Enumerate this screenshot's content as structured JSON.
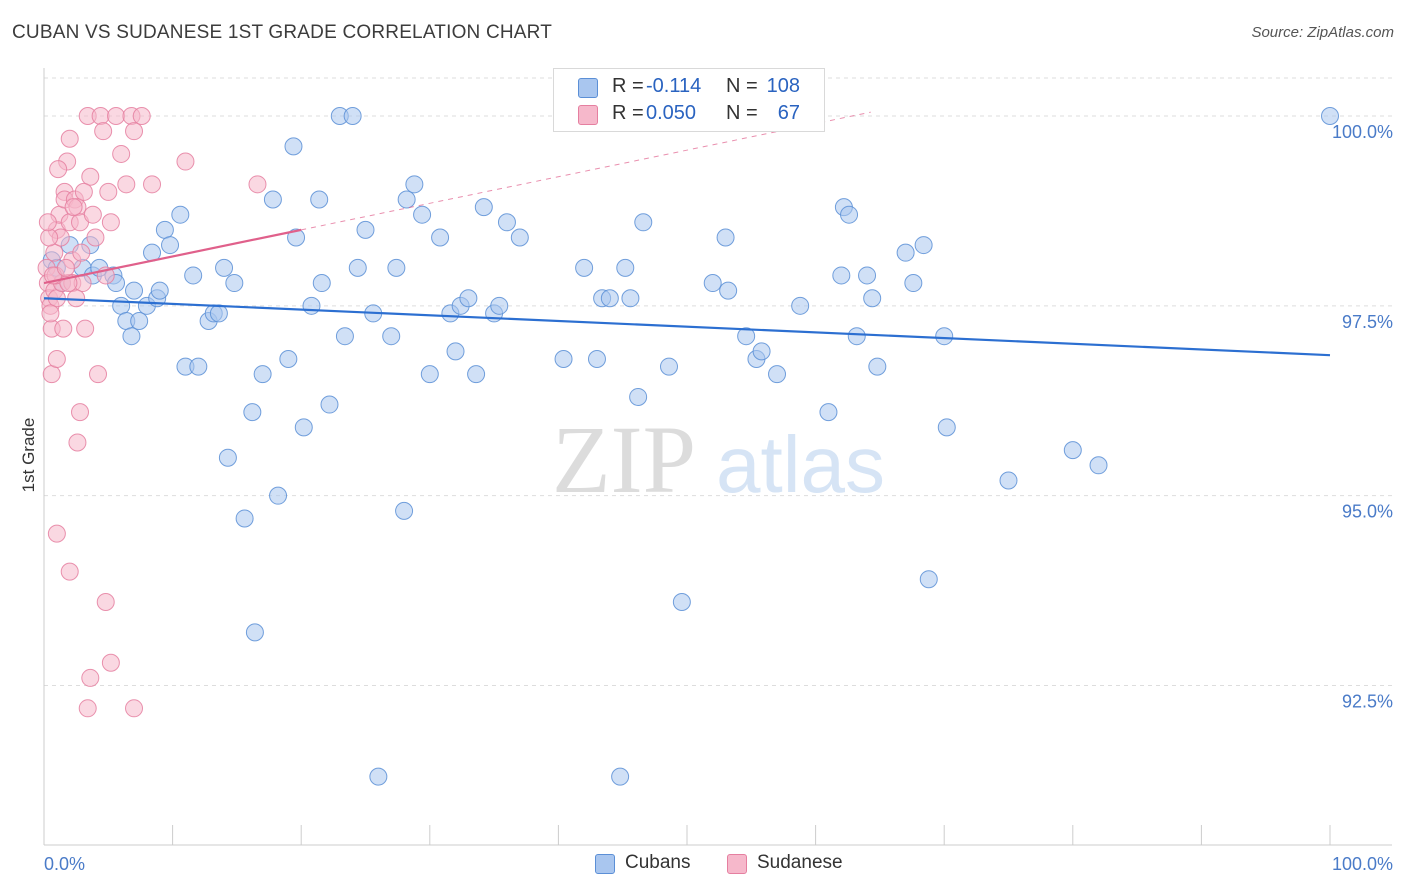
{
  "title": "CUBAN VS SUDANESE 1ST GRADE CORRELATION CHART",
  "source": "Source: ZipAtlas.com",
  "watermark": {
    "zip": "ZIP",
    "atlas": "atlas"
  },
  "colors": {
    "cubans_fill": "#a9c6ef",
    "cubans_stroke": "#5b8fd6",
    "cubans_line": "#2c6fd1",
    "sudanese_fill": "#f6b8cb",
    "sudanese_stroke": "#e57fa0",
    "sudanese_line": "#e0608b",
    "tick_label": "#4a7bc8",
    "grid": "#dddddd"
  },
  "legend": {
    "rows": [
      {
        "r_label": "R =",
        "r_value": "-0.114",
        "n_label": "N =",
        "n_value": "108"
      },
      {
        "r_label": "R =",
        "r_value": "0.050",
        "n_label": "N =",
        "n_value": "67"
      }
    ]
  },
  "bottom_legend": [
    "Cubans",
    "Sudanese"
  ],
  "chart_data": {
    "type": "scatter",
    "title": "CUBAN VS SUDANESE 1ST GRADE CORRELATION CHART",
    "xlabel": "",
    "ylabel": "1st Grade",
    "xlim": [
      0,
      100
    ],
    "ylim": [
      90.4,
      100.5
    ],
    "x_tick_labels": [
      "0.0%",
      "100.0%"
    ],
    "y_ticks": [
      92.5,
      95.0,
      97.5,
      100.0
    ],
    "y_tick_labels": [
      "92.5%",
      "95.0%",
      "97.5%",
      "100.0%"
    ],
    "series": [
      {
        "name": "Cubans",
        "r": -0.114,
        "n": 108,
        "trend": {
          "x": [
            0,
            100
          ],
          "y": [
            97.6,
            96.85
          ]
        },
        "points": [
          [
            0.6,
            98.1
          ],
          [
            1.0,
            98.0
          ],
          [
            1.4,
            97.8
          ],
          [
            2.0,
            98.3
          ],
          [
            3.0,
            98.0
          ],
          [
            3.6,
            98.3
          ],
          [
            3.8,
            97.9
          ],
          [
            4.3,
            98.0
          ],
          [
            5.4,
            97.9
          ],
          [
            5.6,
            97.8
          ],
          [
            6.0,
            97.5
          ],
          [
            6.4,
            97.3
          ],
          [
            6.8,
            97.1
          ],
          [
            7.0,
            97.7
          ],
          [
            7.4,
            97.3
          ],
          [
            8.0,
            97.5
          ],
          [
            8.4,
            98.2
          ],
          [
            8.8,
            97.6
          ],
          [
            9.0,
            97.7
          ],
          [
            9.4,
            98.5
          ],
          [
            9.8,
            98.3
          ],
          [
            10.6,
            98.7
          ],
          [
            11.0,
            96.7
          ],
          [
            11.6,
            97.9
          ],
          [
            12.0,
            96.7
          ],
          [
            12.8,
            97.3
          ],
          [
            13.2,
            97.4
          ],
          [
            13.6,
            97.4
          ],
          [
            14.0,
            98.0
          ],
          [
            14.3,
            95.5
          ],
          [
            14.8,
            97.8
          ],
          [
            15.6,
            94.7
          ],
          [
            16.2,
            96.1
          ],
          [
            16.4,
            93.2
          ],
          [
            17.0,
            96.6
          ],
          [
            17.8,
            98.9
          ],
          [
            18.2,
            95.0
          ],
          [
            19.0,
            96.8
          ],
          [
            19.4,
            99.6
          ],
          [
            19.6,
            98.4
          ],
          [
            20.2,
            95.9
          ],
          [
            20.8,
            97.5
          ],
          [
            21.4,
            98.9
          ],
          [
            21.6,
            97.8
          ],
          [
            22.2,
            96.2
          ],
          [
            23.0,
            100.0
          ],
          [
            23.4,
            97.1
          ],
          [
            24.0,
            100.0
          ],
          [
            24.4,
            98.0
          ],
          [
            25.0,
            98.5
          ],
          [
            25.6,
            97.4
          ],
          [
            26.0,
            91.3
          ],
          [
            27.0,
            97.1
          ],
          [
            27.4,
            98.0
          ],
          [
            28.0,
            94.8
          ],
          [
            28.2,
            98.9
          ],
          [
            28.8,
            99.1
          ],
          [
            29.4,
            98.7
          ],
          [
            30.0,
            96.6
          ],
          [
            30.8,
            98.4
          ],
          [
            31.6,
            97.4
          ],
          [
            32.0,
            96.9
          ],
          [
            32.4,
            97.5
          ],
          [
            33.6,
            96.6
          ],
          [
            33.0,
            97.6
          ],
          [
            34.2,
            98.8
          ],
          [
            35.0,
            97.4
          ],
          [
            35.4,
            97.5
          ],
          [
            36.0,
            98.6
          ],
          [
            37.0,
            98.4
          ],
          [
            40.4,
            96.8
          ],
          [
            42.0,
            98.0
          ],
          [
            43.0,
            96.8
          ],
          [
            43.4,
            97.6
          ],
          [
            44.0,
            97.6
          ],
          [
            44.8,
            91.3
          ],
          [
            45.2,
            98.0
          ],
          [
            45.6,
            97.6
          ],
          [
            46.2,
            96.3
          ],
          [
            46.6,
            98.6
          ],
          [
            48.6,
            96.7
          ],
          [
            49.6,
            93.6
          ],
          [
            52.0,
            97.8
          ],
          [
            53.0,
            98.4
          ],
          [
            53.2,
            97.7
          ],
          [
            54.6,
            97.1
          ],
          [
            55.4,
            96.8
          ],
          [
            55.8,
            96.9
          ],
          [
            57.0,
            96.6
          ],
          [
            58.8,
            97.5
          ],
          [
            61.0,
            96.1
          ],
          [
            62.2,
            98.8
          ],
          [
            62.6,
            98.7
          ],
          [
            62.0,
            97.9
          ],
          [
            63.2,
            97.1
          ],
          [
            64.0,
            97.9
          ],
          [
            64.4,
            97.6
          ],
          [
            64.8,
            96.7
          ],
          [
            67.0,
            98.2
          ],
          [
            67.6,
            97.8
          ],
          [
            68.4,
            98.3
          ],
          [
            68.8,
            93.9
          ],
          [
            70.0,
            97.1
          ],
          [
            70.2,
            95.9
          ],
          [
            75.0,
            95.2
          ],
          [
            80.0,
            95.6
          ],
          [
            82.0,
            95.4
          ],
          [
            100.0,
            100.0
          ]
        ]
      },
      {
        "name": "Sudanese",
        "r": 0.05,
        "n": 67,
        "trend": {
          "x": [
            0,
            20
          ],
          "y": [
            97.8,
            98.5
          ]
        },
        "points": [
          [
            0.2,
            98.0
          ],
          [
            0.3,
            97.8
          ],
          [
            0.4,
            97.6
          ],
          [
            0.5,
            97.5
          ],
          [
            0.6,
            97.2
          ],
          [
            0.6,
            96.6
          ],
          [
            0.8,
            97.7
          ],
          [
            0.8,
            98.2
          ],
          [
            1.0,
            98.5
          ],
          [
            1.0,
            97.6
          ],
          [
            1.2,
            98.7
          ],
          [
            1.3,
            98.4
          ],
          [
            1.4,
            97.8
          ],
          [
            1.6,
            99.0
          ],
          [
            1.6,
            98.9
          ],
          [
            1.8,
            99.4
          ],
          [
            2.0,
            99.7
          ],
          [
            2.0,
            98.6
          ],
          [
            2.2,
            97.8
          ],
          [
            2.4,
            98.9
          ],
          [
            2.6,
            98.8
          ],
          [
            2.8,
            98.6
          ],
          [
            3.0,
            97.8
          ],
          [
            3.2,
            97.2
          ],
          [
            3.4,
            100.0
          ],
          [
            3.6,
            99.2
          ],
          [
            3.8,
            98.7
          ],
          [
            4.0,
            98.4
          ],
          [
            4.2,
            96.6
          ],
          [
            4.4,
            100.0
          ],
          [
            4.6,
            99.8
          ],
          [
            4.8,
            97.9
          ],
          [
            5.0,
            99.0
          ],
          [
            5.2,
            98.6
          ],
          [
            5.6,
            100.0
          ],
          [
            6.0,
            99.5
          ],
          [
            6.4,
            99.1
          ],
          [
            6.8,
            100.0
          ],
          [
            7.0,
            99.8
          ],
          [
            7.6,
            100.0
          ],
          [
            1.0,
            94.5
          ],
          [
            1.0,
            96.8
          ],
          [
            2.0,
            94.0
          ],
          [
            2.6,
            95.7
          ],
          [
            2.8,
            96.1
          ],
          [
            3.4,
            92.2
          ],
          [
            3.6,
            92.6
          ],
          [
            4.8,
            93.6
          ],
          [
            5.2,
            92.8
          ],
          [
            7.0,
            92.2
          ],
          [
            11.0,
            99.4
          ],
          [
            8.4,
            99.1
          ],
          [
            16.6,
            99.1
          ],
          [
            0.4,
            98.4
          ],
          [
            0.9,
            97.9
          ],
          [
            1.5,
            97.2
          ],
          [
            2.2,
            98.1
          ],
          [
            2.5,
            97.6
          ],
          [
            3.1,
            99.0
          ],
          [
            1.1,
            99.3
          ],
          [
            0.7,
            97.9
          ],
          [
            1.9,
            97.8
          ],
          [
            2.9,
            98.2
          ],
          [
            0.3,
            98.6
          ],
          [
            1.7,
            98.0
          ],
          [
            2.3,
            98.8
          ],
          [
            0.5,
            97.4
          ]
        ]
      }
    ]
  }
}
